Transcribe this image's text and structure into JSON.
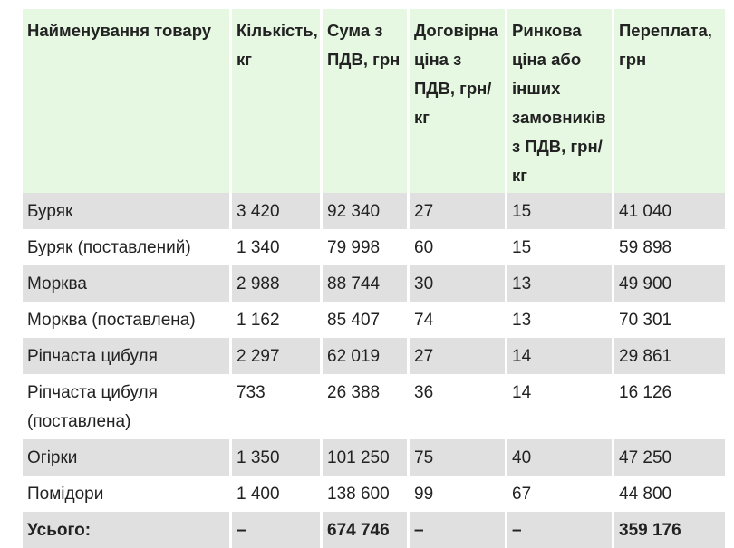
{
  "headers": [
    "Найменування товару",
    "Кількість, кг",
    "Сума з ПДВ, грн",
    "Договірна ціна з ПДВ, грн/кг",
    "Ринкова ціна або інших замовників з ПДВ, грн/кг",
    "Переплата, грн"
  ],
  "rows": [
    [
      "Буряк",
      "3 420",
      "92 340",
      "27",
      "15",
      "41 040"
    ],
    [
      "Буряк (поставлений)",
      "1 340",
      "79 998",
      "60",
      "15",
      "59 898"
    ],
    [
      "Морква",
      "2 988",
      "88 744",
      "30",
      "13",
      "49 900"
    ],
    [
      "Морква (поставлена)",
      "1 162",
      "85 407",
      "74",
      "13",
      "70 301"
    ],
    [
      "Ріпчаста цибуля",
      "2 297",
      "62 019",
      "27",
      "14",
      "29 861"
    ],
    [
      "Ріпчаста цибуля (поставлена)",
      "733",
      "26 388",
      "36",
      "14",
      "16 126"
    ],
    [
      "Огірки",
      "1 350",
      "101 250",
      "75",
      "40",
      "47 250"
    ],
    [
      "Помідори",
      "1 400",
      "138 600",
      "99",
      "67",
      "44 800"
    ]
  ],
  "total": [
    "Усього:",
    "–",
    "674 746",
    "–",
    "–",
    "359 176"
  ]
}
